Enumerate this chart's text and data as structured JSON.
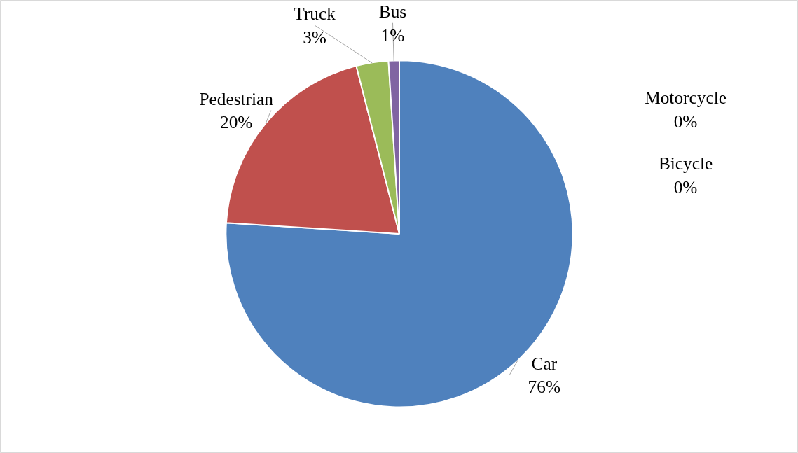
{
  "chart_data": {
    "type": "pie",
    "categories": [
      "Car",
      "Pedestrian",
      "Truck",
      "Bus",
      "Motorcycle",
      "Bicycle"
    ],
    "values": [
      76,
      20,
      3,
      1,
      0,
      0
    ],
    "value_labels": [
      "76%",
      "20%",
      "3%",
      "1%",
      "0%",
      "0%"
    ],
    "colors": [
      "#4f81bd",
      "#c0504d",
      "#9bbb59",
      "#8064a2",
      "#4bacc6",
      "#f79646"
    ],
    "data_labels": true
  }
}
